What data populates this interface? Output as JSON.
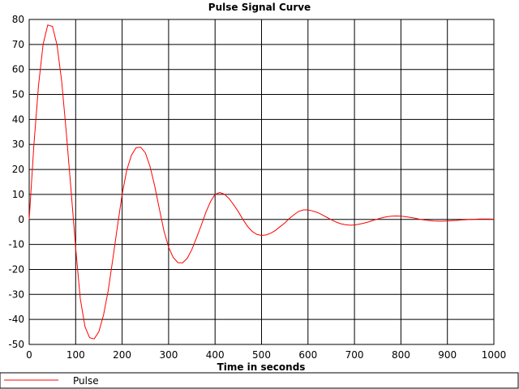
{
  "chart_data": {
    "type": "line",
    "title": "Pulse Signal Curve",
    "xlabel": "Time in seconds",
    "ylabel": "",
    "xlim": [
      0,
      1000
    ],
    "ylim": [
      -50,
      80
    ],
    "x_ticks": [
      0,
      100,
      200,
      300,
      400,
      500,
      600,
      700,
      800,
      900,
      1000
    ],
    "y_ticks": [
      80,
      70,
      60,
      50,
      40,
      30,
      20,
      10,
      0,
      -10,
      -20,
      -30,
      -40,
      -50
    ],
    "grid": true,
    "legend_position": "bottom",
    "series": [
      {
        "name": "Pulse",
        "color": "#ff0000",
        "x": [
          0,
          10,
          20,
          30,
          40,
          50,
          60,
          70,
          80,
          90,
          100,
          110,
          120,
          130,
          140,
          150,
          160,
          170,
          180,
          190,
          200,
          210,
          220,
          230,
          240,
          250,
          260,
          270,
          280,
          290,
          300,
          310,
          320,
          330,
          340,
          350,
          360,
          370,
          380,
          390,
          400,
          410,
          420,
          430,
          440,
          450,
          460,
          470,
          480,
          490,
          500,
          510,
          520,
          530,
          540,
          550,
          560,
          570,
          580,
          590,
          600,
          610,
          620,
          630,
          640,
          650,
          660,
          670,
          680,
          690,
          700,
          710,
          720,
          730,
          740,
          750,
          760,
          770,
          780,
          790,
          800,
          810,
          820,
          830,
          840,
          850,
          860,
          870,
          880,
          890,
          900,
          910,
          920,
          930,
          940,
          950,
          960,
          970,
          980,
          990,
          1000
        ],
        "values": [
          0,
          29.4,
          53.6,
          70.1,
          77.8,
          77.2,
          69.7,
          55.1,
          34.6,
          11.8,
          -11.4,
          -31.7,
          -42.9,
          -47.3,
          -47.8,
          -44.8,
          -38.2,
          -28.5,
          -15.9,
          -2.6,
          10.0,
          19.7,
          25.7,
          28.7,
          28.9,
          26.6,
          21.2,
          13.5,
          4.4,
          -4.6,
          -11.1,
          -15.2,
          -17.3,
          -17.4,
          -15.6,
          -12.1,
          -7.4,
          -2.5,
          2.7,
          7.1,
          10.0,
          10.8,
          10.1,
          8.4,
          5.9,
          3.1,
          0.0,
          -2.8,
          -4.8,
          -6.0,
          -6.4,
          -6.2,
          -5.5,
          -4.4,
          -2.9,
          -1.4,
          0.4,
          1.9,
          3.2,
          3.8,
          3.8,
          3.4,
          2.8,
          1.9,
          0.9,
          -0.1,
          -1.0,
          -1.7,
          -2.1,
          -2.3,
          -2.2,
          -1.9,
          -1.5,
          -1.0,
          -0.4,
          0.2,
          0.7,
          1.1,
          1.3,
          1.4,
          1.3,
          1.1,
          0.8,
          0.5,
          0.1,
          -0.2,
          -0.4,
          -0.6,
          -0.7,
          -0.7,
          -0.6,
          -0.5,
          -0.4,
          -0.2,
          -0.1,
          0.0,
          0.1,
          0.2,
          0.2,
          0.2,
          0.1
        ]
      }
    ]
  }
}
